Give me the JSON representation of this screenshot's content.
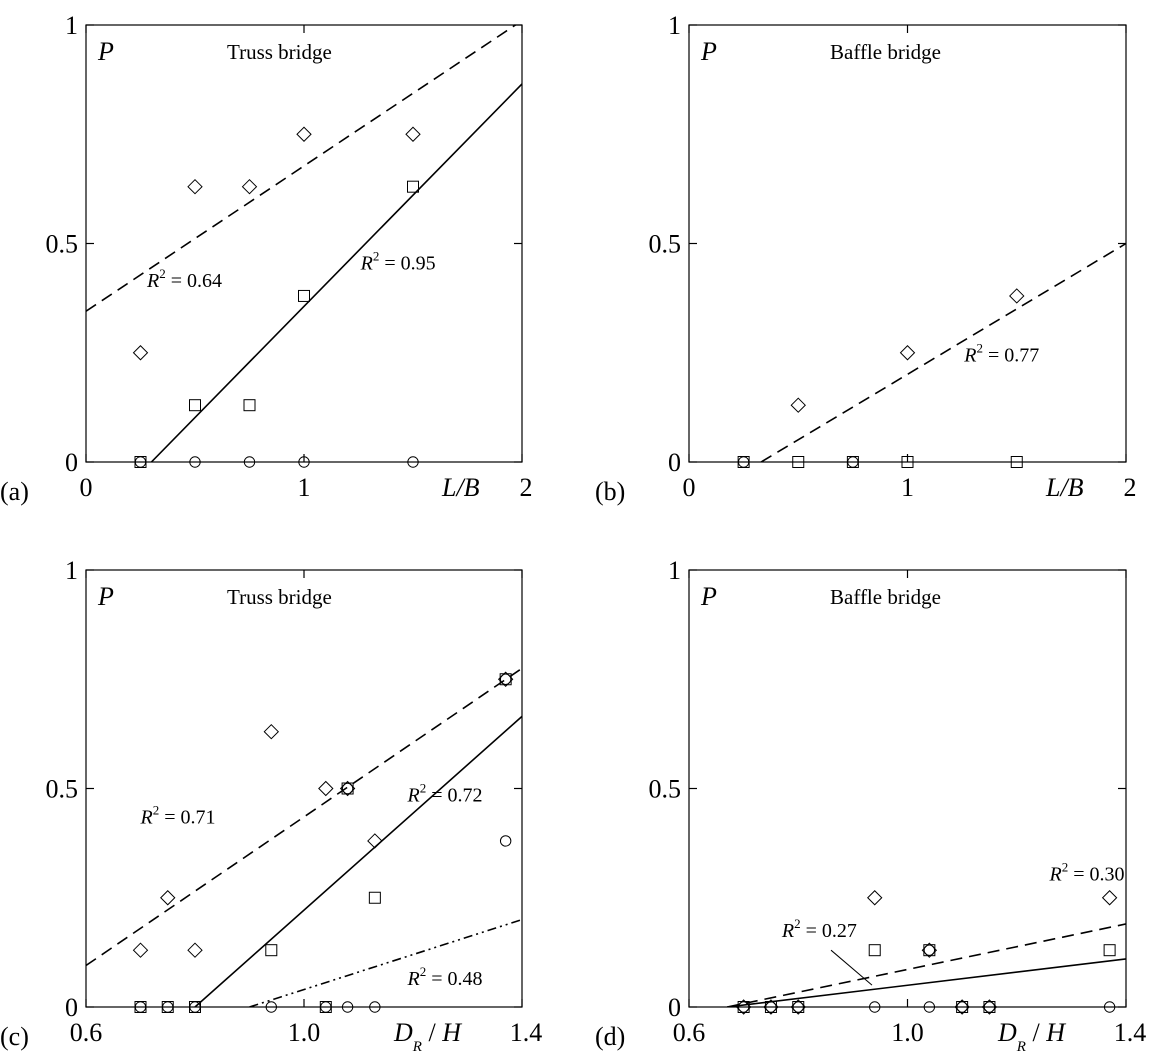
{
  "chart_data": [
    {
      "type": "scatter",
      "panel_label": "(a)",
      "title": "Truss bridge",
      "ylabel": "P",
      "xlabel": {
        "main": "L/B",
        "sub": ""
      },
      "xlim": [
        0,
        2
      ],
      "ylim": [
        0,
        1
      ],
      "xticks": [
        {
          "v": 0,
          "label": "0"
        },
        {
          "v": 1,
          "label": "1"
        },
        {
          "v": 2,
          "label": "2"
        }
      ],
      "yticks": [
        {
          "v": 0,
          "label": "0"
        },
        {
          "v": 0.5,
          "label": "0.5"
        },
        {
          "v": 1,
          "label": "1"
        }
      ],
      "series": [
        {
          "marker": "diamond",
          "points": [
            [
              0.25,
              0.25
            ],
            [
              0.5,
              0.63
            ],
            [
              0.75,
              0.63
            ],
            [
              1.0,
              0.75
            ],
            [
              1.5,
              0.75
            ]
          ]
        },
        {
          "marker": "square",
          "points": [
            [
              0.25,
              0.0
            ],
            [
              0.5,
              0.13
            ],
            [
              0.75,
              0.13
            ],
            [
              1.0,
              0.38
            ],
            [
              1.5,
              0.63
            ]
          ]
        },
        {
          "marker": "circle",
          "points": [
            [
              0.25,
              0.0
            ],
            [
              0.5,
              0.0
            ],
            [
              0.75,
              0.0
            ],
            [
              1.0,
              0.0
            ],
            [
              1.5,
              0.0
            ]
          ]
        }
      ],
      "fits": [
        {
          "style": "dashed",
          "x": [
            0,
            2
          ],
          "y": [
            0.345,
            1.01
          ]
        },
        {
          "style": "solid",
          "x": [
            0.3,
            2
          ],
          "y": [
            0.0,
            0.865
          ]
        }
      ],
      "annotations": [
        {
          "text": "R² = 0.64",
          "x": 0.28,
          "y": 0.4
        },
        {
          "text": "R² = 0.95",
          "x": 1.26,
          "y": 0.44
        }
      ]
    },
    {
      "type": "scatter",
      "panel_label": "(b)",
      "title": "Baffle bridge",
      "ylabel": "P",
      "xlabel": {
        "main": "L/B",
        "sub": ""
      },
      "xlim": [
        0,
        2
      ],
      "ylim": [
        0,
        1
      ],
      "xticks": [
        {
          "v": 0,
          "label": "0"
        },
        {
          "v": 1,
          "label": "1"
        },
        {
          "v": 2,
          "label": "2"
        }
      ],
      "yticks": [
        {
          "v": 0,
          "label": "0"
        },
        {
          "v": 0.5,
          "label": "0.5"
        },
        {
          "v": 1,
          "label": "1"
        }
      ],
      "series": [
        {
          "marker": "diamond",
          "points": [
            [
              0.5,
              0.13
            ],
            [
              1.0,
              0.25
            ],
            [
              1.5,
              0.38
            ]
          ]
        },
        {
          "marker": "square",
          "points": [
            [
              0.25,
              0.0
            ],
            [
              0.5,
              0.0
            ],
            [
              0.75,
              0.0
            ],
            [
              1.0,
              0.0
            ],
            [
              1.5,
              0.0
            ]
          ]
        },
        {
          "marker": "circle",
          "points": [
            [
              0.25,
              0.0
            ],
            [
              0.75,
              0.0
            ]
          ]
        }
      ],
      "fits": [
        {
          "style": "dashed",
          "x": [
            0.33,
            2
          ],
          "y": [
            0.0,
            0.5
          ]
        }
      ],
      "annotations": [
        {
          "text": "R² = 0.77",
          "x": 1.26,
          "y": 0.23
        }
      ]
    },
    {
      "type": "scatter",
      "panel_label": "(c)",
      "title": "Truss bridge",
      "ylabel": "P",
      "xlabel": {
        "main": "D",
        "sub": "R",
        "tail": " / H"
      },
      "xlim": [
        0.6,
        1.4
      ],
      "ylim": [
        0,
        1
      ],
      "xticks": [
        {
          "v": 0.6,
          "label": "0.6"
        },
        {
          "v": 1.0,
          "label": "1.0"
        },
        {
          "v": 1.4,
          "label": "1.4"
        }
      ],
      "yticks": [
        {
          "v": 0,
          "label": "0"
        },
        {
          "v": 0.5,
          "label": "0.5"
        },
        {
          "v": 1,
          "label": "1"
        }
      ],
      "series": [
        {
          "marker": "diamond",
          "points": [
            [
              0.7,
              0.13
            ],
            [
              0.75,
              0.25
            ],
            [
              0.8,
              0.13
            ],
            [
              0.94,
              0.63
            ],
            [
              1.04,
              0.5
            ],
            [
              1.08,
              0.5
            ],
            [
              1.13,
              0.38
            ],
            [
              1.37,
              0.75
            ]
          ]
        },
        {
          "marker": "square",
          "points": [
            [
              0.7,
              0.0
            ],
            [
              0.75,
              0.0
            ],
            [
              0.8,
              0.0
            ],
            [
              0.94,
              0.13
            ],
            [
              1.04,
              0.0
            ],
            [
              1.08,
              0.5
            ],
            [
              1.13,
              0.25
            ],
            [
              1.37,
              0.75
            ]
          ]
        },
        {
          "marker": "circle",
          "points": [
            [
              0.7,
              0.0
            ],
            [
              0.75,
              0.0
            ],
            [
              0.8,
              0.0
            ],
            [
              0.94,
              0.0
            ],
            [
              1.04,
              0.0
            ],
            [
              1.08,
              0.0
            ],
            [
              1.13,
              0.0
            ],
            [
              1.37,
              0.38
            ],
            [
              1.37,
              0.75
            ],
            [
              1.08,
              0.5
            ]
          ]
        }
      ],
      "fits": [
        {
          "style": "dashed",
          "x": [
            0.6,
            1.4
          ],
          "y": [
            0.095,
            0.775
          ]
        },
        {
          "style": "solid",
          "x": [
            0.8,
            1.4
          ],
          "y": [
            0.0,
            0.665
          ]
        },
        {
          "style": "dashdot",
          "x": [
            0.9,
            1.4
          ],
          "y": [
            0.0,
            0.2
          ]
        }
      ],
      "annotations": [
        {
          "text": "R² = 0.71",
          "x": 0.7,
          "y": 0.42
        },
        {
          "text": "R² = 0.72",
          "x": 1.19,
          "y": 0.47
        },
        {
          "text": "R² = 0.48",
          "x": 1.19,
          "y": 0.05
        }
      ]
    },
    {
      "type": "scatter",
      "panel_label": "(d)",
      "title": "Baffle bridge",
      "ylabel": "P",
      "xlabel": {
        "main": "D",
        "sub": "R",
        "tail": " / H"
      },
      "xlim": [
        0.6,
        1.4
      ],
      "ylim": [
        0,
        1
      ],
      "xticks": [
        {
          "v": 0.6,
          "label": "0.6"
        },
        {
          "v": 1.0,
          "label": "1.0"
        },
        {
          "v": 1.4,
          "label": "1.4"
        }
      ],
      "yticks": [
        {
          "v": 0,
          "label": "0"
        },
        {
          "v": 0.5,
          "label": "0.5"
        },
        {
          "v": 1,
          "label": "1"
        }
      ],
      "series": [
        {
          "marker": "diamond",
          "points": [
            [
              0.7,
              0.0
            ],
            [
              0.75,
              0.0
            ],
            [
              0.8,
              0.0
            ],
            [
              0.94,
              0.25
            ],
            [
              1.04,
              0.13
            ],
            [
              1.1,
              0.0
            ],
            [
              1.15,
              0.0
            ],
            [
              1.37,
              0.25
            ]
          ]
        },
        {
          "marker": "square",
          "points": [
            [
              0.7,
              0.0
            ],
            [
              0.75,
              0.0
            ],
            [
              0.8,
              0.0
            ],
            [
              0.94,
              0.13
            ],
            [
              1.04,
              0.13
            ],
            [
              1.1,
              0.0
            ],
            [
              1.15,
              0.0
            ],
            [
              1.37,
              0.13
            ]
          ]
        },
        {
          "marker": "circle",
          "points": [
            [
              0.7,
              0.0
            ],
            [
              0.75,
              0.0
            ],
            [
              0.8,
              0.0
            ],
            [
              0.94,
              0.0
            ],
            [
              1.04,
              0.0
            ],
            [
              1.04,
              0.13
            ],
            [
              1.1,
              0.0
            ],
            [
              1.15,
              0.0
            ],
            [
              1.37,
              0.0
            ]
          ]
        }
      ],
      "fits": [
        {
          "style": "dashed",
          "x": [
            0.67,
            1.4
          ],
          "y": [
            0.0,
            0.19
          ]
        },
        {
          "style": "solid",
          "x": [
            0.67,
            1.4
          ],
          "y": [
            0.0,
            0.11
          ]
        }
      ],
      "annotations": [
        {
          "text": "R² = 0.30",
          "x": 1.26,
          "y": 0.29
        },
        {
          "text": "R² = 0.27",
          "x": 0.77,
          "y": 0.16
        }
      ]
    }
  ]
}
